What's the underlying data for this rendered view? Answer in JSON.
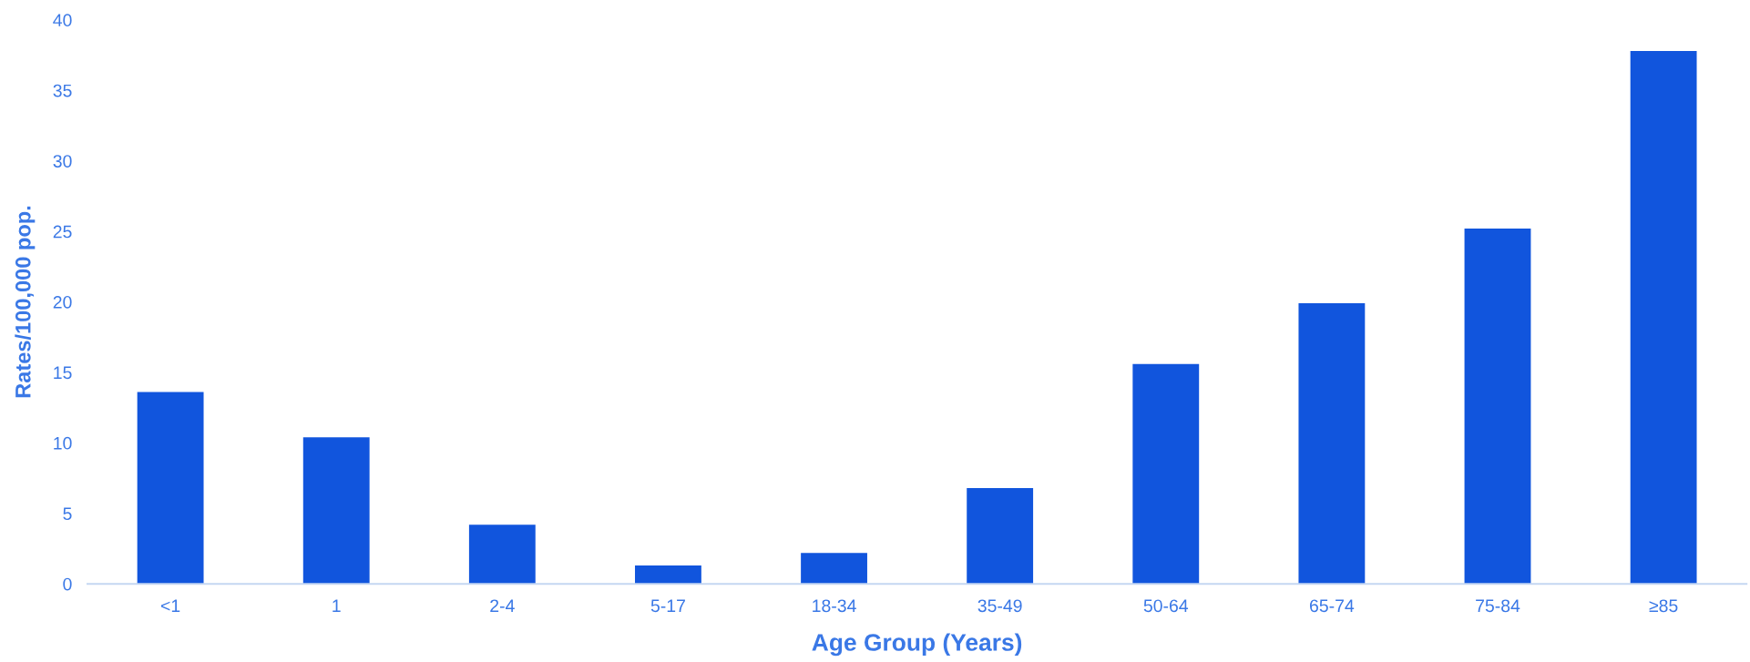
{
  "chart_data": {
    "type": "bar",
    "xlabel": "Age Group (Years)",
    "ylabel": "Rates/100,000 pop.",
    "categories": [
      "<1",
      "1",
      "2-4",
      "5-17",
      "18-34",
      "35-49",
      "50-64",
      "65-74",
      "75-84",
      "≥85"
    ],
    "values": [
      13.6,
      10.4,
      4.2,
      1.3,
      2.2,
      6.8,
      15.6,
      19.9,
      25.2,
      37.8
    ],
    "color": "#1155dd",
    "ylim": [
      0,
      40
    ],
    "yticks": [
      0,
      5,
      10,
      15,
      20,
      25,
      30,
      35,
      40
    ],
    "grid": false,
    "legend": false
  }
}
